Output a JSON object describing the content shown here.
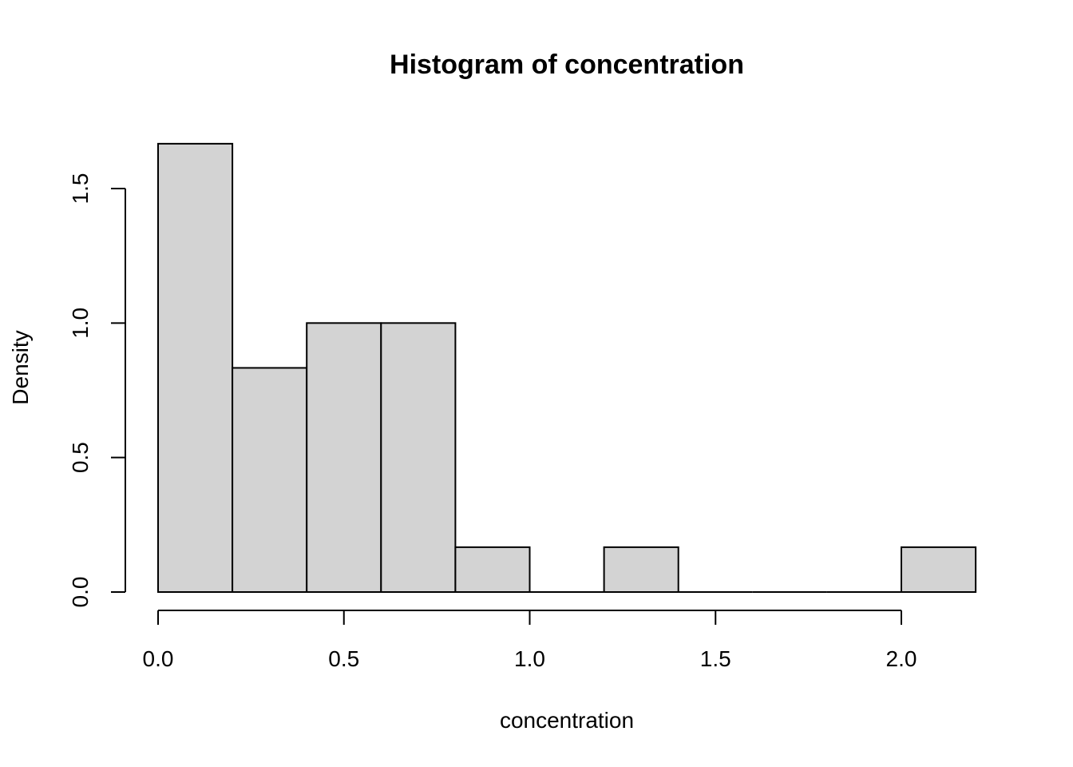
{
  "chart_data": {
    "type": "bar",
    "title": "Histogram of concentration",
    "xlabel": "concentration",
    "ylabel": "Density",
    "xlim": [
      0.0,
      2.2
    ],
    "ylim": [
      0,
      1.6667
    ],
    "grid": false,
    "bins": [
      {
        "start": 0.0,
        "end": 0.2,
        "density": 1.6667
      },
      {
        "start": 0.2,
        "end": 0.4,
        "density": 0.8333
      },
      {
        "start": 0.4,
        "end": 0.6,
        "density": 1.0
      },
      {
        "start": 0.6,
        "end": 0.8,
        "density": 1.0
      },
      {
        "start": 0.8,
        "end": 1.0,
        "density": 0.1667
      },
      {
        "start": 1.0,
        "end": 1.2,
        "density": 0.0
      },
      {
        "start": 1.2,
        "end": 1.4,
        "density": 0.1667
      },
      {
        "start": 1.4,
        "end": 1.6,
        "density": 0.0
      },
      {
        "start": 1.6,
        "end": 1.8,
        "density": 0.0
      },
      {
        "start": 1.8,
        "end": 2.0,
        "density": 0.0
      },
      {
        "start": 2.0,
        "end": 2.2,
        "density": 0.1667
      }
    ],
    "x_ticks": [
      0.0,
      0.5,
      1.0,
      1.5,
      2.0
    ],
    "x_tick_labels": [
      "0.0",
      "0.5",
      "1.0",
      "1.5",
      "2.0"
    ],
    "y_ticks": [
      0.0,
      0.5,
      1.0,
      1.5
    ],
    "y_tick_labels": [
      "0.0",
      "0.5",
      "1.0",
      "1.5"
    ]
  }
}
